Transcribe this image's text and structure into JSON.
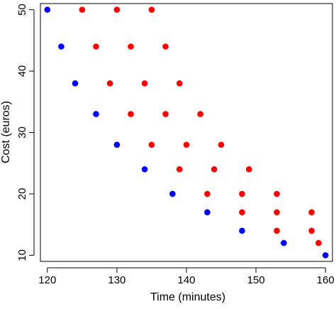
{
  "chart_data": {
    "type": "scatter",
    "title": "",
    "xlabel": "Time (minutes)",
    "ylabel": "Cost (euros)",
    "xlim": [
      119,
      161
    ],
    "ylim": [
      9,
      51
    ],
    "xticks": [
      120,
      130,
      140,
      150,
      160
    ],
    "yticks": [
      10,
      20,
      30,
      40,
      50
    ],
    "xtick_labels": [
      "120",
      "130",
      "140",
      "150",
      "160"
    ],
    "ytick_labels": [
      "10",
      "20",
      "30",
      "40",
      "50"
    ],
    "grid": false,
    "legend": "none",
    "series": [
      {
        "color": "#0000ff",
        "points": [
          [
            120,
            50
          ],
          [
            122,
            44
          ],
          [
            124,
            38
          ],
          [
            127,
            33
          ],
          [
            130,
            28
          ],
          [
            134,
            24
          ],
          [
            138,
            20
          ],
          [
            143,
            17
          ],
          [
            148,
            14
          ],
          [
            154,
            12
          ],
          [
            160,
            10
          ]
        ]
      },
      {
        "color": "#ff0000",
        "points": [
          [
            125,
            50
          ],
          [
            130,
            50
          ],
          [
            135,
            50
          ],
          [
            127,
            44
          ],
          [
            132,
            44
          ],
          [
            137,
            44
          ],
          [
            129,
            38
          ],
          [
            134,
            38
          ],
          [
            139,
            38
          ],
          [
            132,
            33
          ],
          [
            137,
            33
          ],
          [
            142,
            33
          ],
          [
            135,
            28
          ],
          [
            140,
            28
          ],
          [
            145,
            28
          ],
          [
            139,
            24
          ],
          [
            144,
            24
          ],
          [
            149,
            24
          ],
          [
            143,
            20
          ],
          [
            148,
            20
          ],
          [
            153,
            20
          ],
          [
            148,
            17
          ],
          [
            153,
            17
          ],
          [
            158,
            17
          ],
          [
            153,
            14
          ],
          [
            158,
            14
          ],
          [
            159,
            12
          ]
        ]
      }
    ]
  }
}
